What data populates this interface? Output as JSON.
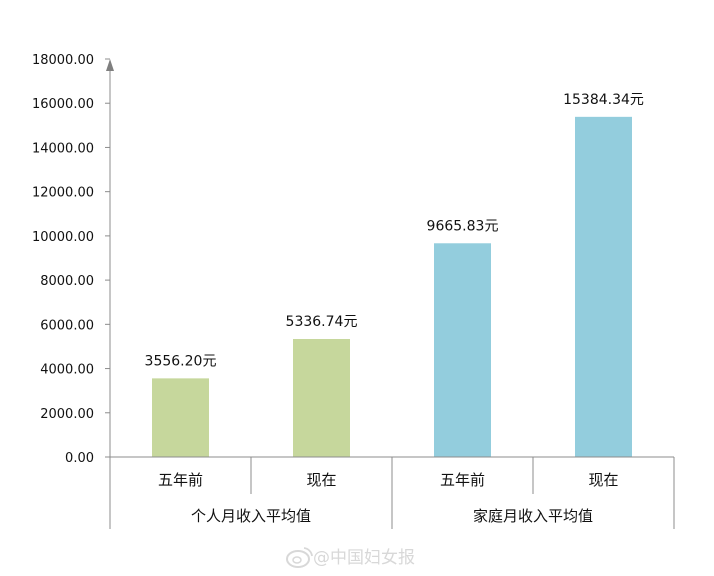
{
  "chart_data": {
    "type": "bar",
    "categories": [
      "五年前",
      "现在",
      "五年前",
      "现在"
    ],
    "groups": [
      {
        "label": "个人月收入平均值",
        "members": [
          0,
          1
        ]
      },
      {
        "label": "家庭月收入平均值",
        "members": [
          2,
          3
        ]
      }
    ],
    "values": [
      3556.2,
      5336.74,
      9665.83,
      15384.34
    ],
    "data_labels": [
      "3556.20元",
      "5336.74元",
      "9665.83元",
      "15384.34元"
    ],
    "bar_colors": [
      "#c6d79c",
      "#c6d79c",
      "#93cddd",
      "#93cddd"
    ],
    "ylim": [
      0,
      18000
    ],
    "yticks": [
      "0.00",
      "2000.00",
      "4000.00",
      "6000.00",
      "8000.00",
      "10000.00",
      "12000.00",
      "14000.00",
      "16000.00",
      "18000.00"
    ],
    "title": "",
    "xlabel": "",
    "ylabel": "",
    "grid": false
  },
  "watermark": {
    "text": "@中国妇女报",
    "icon": "weibo-icon"
  }
}
